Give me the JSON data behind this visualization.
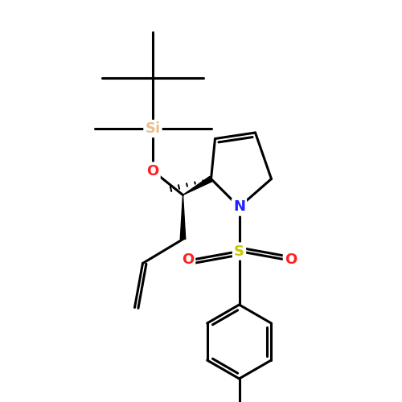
{
  "background_color": "#ffffff",
  "atom_colors": {
    "Si": "#e8c090",
    "O": "#ff2020",
    "N": "#2020ff",
    "S": "#c8c800",
    "C": "#000000"
  },
  "bond_color": "#000000",
  "bond_width": 2.2,
  "figsize": [
    5.0,
    5.0
  ],
  "dpi": 100,
  "xlim": [
    0,
    10
  ],
  "ylim": [
    0,
    10
  ]
}
